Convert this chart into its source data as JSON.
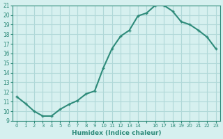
{
  "xlabel": "Humidex (Indice chaleur)",
  "x": [
    0,
    1,
    2,
    3,
    4,
    5,
    6,
    7,
    8,
    9,
    10,
    11,
    12,
    13,
    14,
    15,
    16,
    17,
    18,
    19,
    20,
    21,
    22,
    23
  ],
  "y": [
    11.5,
    10.8,
    10.0,
    9.5,
    9.5,
    10.2,
    10.7,
    11.1,
    11.8,
    12.1,
    14.5,
    16.5,
    17.8,
    18.4,
    19.9,
    20.2,
    21.0,
    21.0,
    20.4,
    19.3,
    19.0,
    18.4,
    17.7,
    16.5
  ],
  "line_color": "#2e8b7a",
  "marker_color": "#2e8b7a",
  "bg_color": "#d6f0ef",
  "grid_color": "#b0d8d8",
  "axis_label_color": "#2e8b7a",
  "tick_color": "#2e8b7a",
  "xlim": [
    -0.5,
    23.5
  ],
  "ylim": [
    9,
    21
  ],
  "yticks": [
    9,
    10,
    11,
    12,
    13,
    14,
    15,
    16,
    17,
    18,
    19,
    20,
    21
  ],
  "xtick_labels": [
    "0",
    "1",
    "2",
    "3",
    "4",
    "5",
    "6",
    "7",
    "8",
    "9",
    "10",
    "11",
    "12",
    "13",
    "14",
    "",
    "16",
    "17",
    "18",
    "19",
    "20",
    "21",
    "22",
    "23"
  ],
  "marker_size": 3,
  "line_width": 1.5
}
